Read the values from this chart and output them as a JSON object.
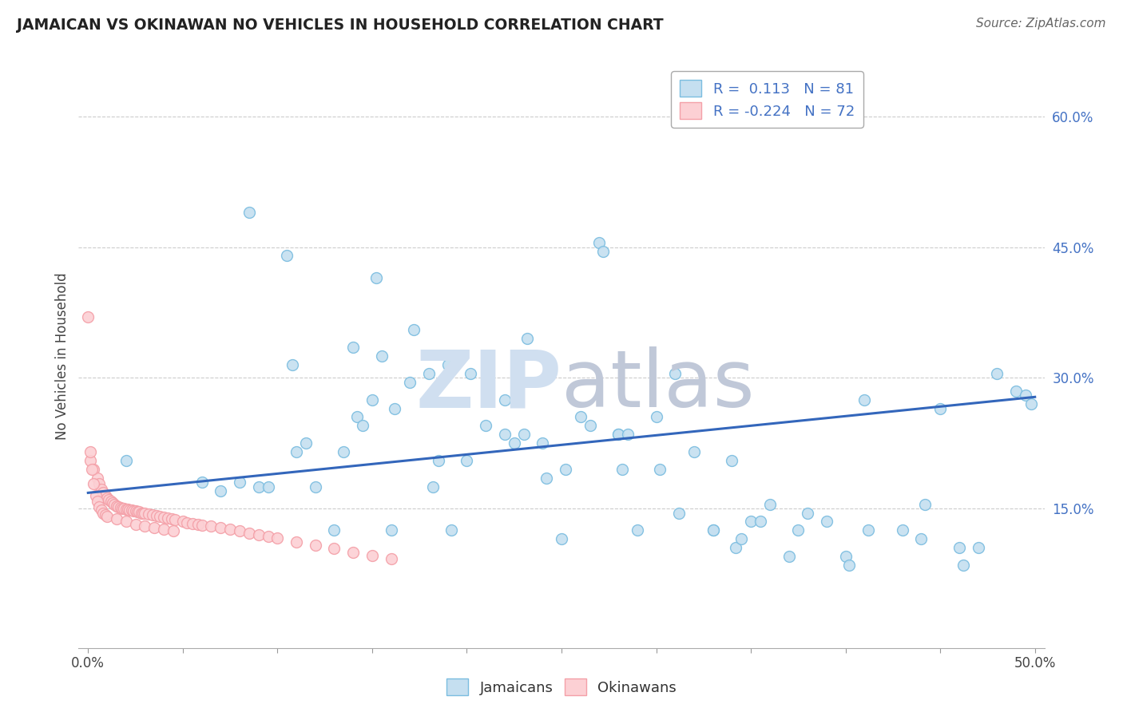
{
  "title": "JAMAICAN VS OKINAWAN NO VEHICLES IN HOUSEHOLD CORRELATION CHART",
  "source": "Source: ZipAtlas.com",
  "ylabel": "No Vehicles in Household",
  "y_tick_labels": [
    "15.0%",
    "30.0%",
    "45.0%",
    "60.0%"
  ],
  "y_tick_values": [
    0.15,
    0.3,
    0.45,
    0.6
  ],
  "x_tick_labels": [
    "0.0%",
    "",
    "",
    "",
    "",
    "",
    "",
    "",
    "",
    "",
    "50.0%"
  ],
  "x_tick_values": [
    0.0,
    0.05,
    0.1,
    0.15,
    0.2,
    0.25,
    0.3,
    0.35,
    0.4,
    0.45,
    0.5
  ],
  "xlim": [
    -0.005,
    0.505
  ],
  "ylim": [
    -0.01,
    0.66
  ],
  "jamaican_color": "#7bbde0",
  "jamaican_face": "#c5dff0",
  "okinawan_color": "#f4a0a8",
  "okinawan_face": "#fcd0d4",
  "trend_jamaican_color": "#3366bb",
  "watermark_color": "#d0dff0",
  "jamaicans_x": [
    0.02,
    0.085,
    0.105,
    0.108,
    0.11,
    0.115,
    0.12,
    0.13,
    0.135,
    0.14,
    0.142,
    0.145,
    0.15,
    0.152,
    0.155,
    0.16,
    0.162,
    0.17,
    0.172,
    0.18,
    0.182,
    0.185,
    0.19,
    0.192,
    0.2,
    0.202,
    0.21,
    0.22,
    0.23,
    0.232,
    0.24,
    0.242,
    0.25,
    0.252,
    0.26,
    0.27,
    0.272,
    0.28,
    0.282,
    0.29,
    0.3,
    0.302,
    0.31,
    0.312,
    0.32,
    0.33,
    0.34,
    0.342,
    0.35,
    0.36,
    0.37,
    0.38,
    0.4,
    0.402,
    0.41,
    0.412,
    0.43,
    0.44,
    0.442,
    0.45,
    0.46,
    0.462,
    0.47,
    0.48,
    0.49,
    0.495,
    0.498,
    0.06,
    0.07,
    0.08,
    0.09,
    0.095,
    0.22,
    0.225,
    0.265,
    0.28,
    0.285,
    0.33,
    0.345,
    0.355,
    0.375,
    0.39
  ],
  "jamaicans_y": [
    0.205,
    0.49,
    0.44,
    0.315,
    0.215,
    0.225,
    0.175,
    0.125,
    0.215,
    0.335,
    0.255,
    0.245,
    0.275,
    0.415,
    0.325,
    0.125,
    0.265,
    0.295,
    0.355,
    0.305,
    0.175,
    0.205,
    0.315,
    0.125,
    0.205,
    0.305,
    0.245,
    0.275,
    0.235,
    0.345,
    0.225,
    0.185,
    0.115,
    0.195,
    0.255,
    0.455,
    0.445,
    0.235,
    0.195,
    0.125,
    0.255,
    0.195,
    0.305,
    0.145,
    0.215,
    0.125,
    0.205,
    0.105,
    0.135,
    0.155,
    0.095,
    0.145,
    0.095,
    0.085,
    0.275,
    0.125,
    0.125,
    0.115,
    0.155,
    0.265,
    0.105,
    0.085,
    0.105,
    0.305,
    0.285,
    0.28,
    0.27,
    0.18,
    0.17,
    0.18,
    0.175,
    0.175,
    0.235,
    0.225,
    0.245,
    0.235,
    0.235,
    0.125,
    0.115,
    0.135,
    0.125,
    0.135
  ],
  "okinawans_x": [
    0.001,
    0.003,
    0.005,
    0.006,
    0.007,
    0.008,
    0.009,
    0.01,
    0.011,
    0.012,
    0.013,
    0.014,
    0.015,
    0.016,
    0.017,
    0.018,
    0.019,
    0.02,
    0.021,
    0.022,
    0.023,
    0.024,
    0.025,
    0.026,
    0.027,
    0.028,
    0.029,
    0.03,
    0.032,
    0.034,
    0.036,
    0.038,
    0.04,
    0.042,
    0.044,
    0.046,
    0.05,
    0.052,
    0.055,
    0.058,
    0.06,
    0.065,
    0.07,
    0.075,
    0.08,
    0.085,
    0.09,
    0.095,
    0.1,
    0.11,
    0.12,
    0.13,
    0.14,
    0.15,
    0.16,
    0.0,
    0.001,
    0.002,
    0.003,
    0.004,
    0.005,
    0.006,
    0.007,
    0.008,
    0.009,
    0.01,
    0.015,
    0.02,
    0.025,
    0.03,
    0.035,
    0.04,
    0.045
  ],
  "okinawans_y": [
    0.205,
    0.195,
    0.185,
    0.178,
    0.172,
    0.168,
    0.165,
    0.162,
    0.16,
    0.158,
    0.156,
    0.155,
    0.153,
    0.152,
    0.151,
    0.15,
    0.15,
    0.149,
    0.149,
    0.148,
    0.148,
    0.147,
    0.147,
    0.146,
    0.146,
    0.145,
    0.145,
    0.145,
    0.144,
    0.143,
    0.142,
    0.141,
    0.14,
    0.139,
    0.138,
    0.137,
    0.135,
    0.134,
    0.133,
    0.132,
    0.131,
    0.13,
    0.128,
    0.126,
    0.124,
    0.122,
    0.12,
    0.118,
    0.116,
    0.112,
    0.108,
    0.104,
    0.1,
    0.096,
    0.092,
    0.37,
    0.215,
    0.195,
    0.178,
    0.165,
    0.158,
    0.152,
    0.148,
    0.145,
    0.143,
    0.141,
    0.138,
    0.135,
    0.132,
    0.13,
    0.128,
    0.126,
    0.124
  ]
}
